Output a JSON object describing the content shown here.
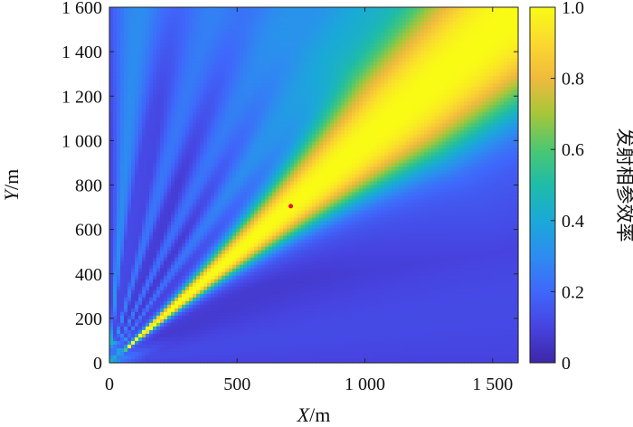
{
  "chart_data": {
    "type": "heatmap",
    "title": "",
    "xlabel": {
      "var": "X",
      "unit": "/m"
    },
    "ylabel": {
      "var": "Y",
      "unit": "/m"
    },
    "xlim": [
      0,
      1600
    ],
    "ylim": [
      0,
      1600
    ],
    "x_ticks": [
      {
        "value": 0,
        "label": "0"
      },
      {
        "value": 500,
        "label": "500"
      },
      {
        "value": 1000,
        "label": "1 000"
      },
      {
        "value": 1500,
        "label": "1 500"
      }
    ],
    "y_ticks": [
      {
        "value": 0,
        "label": "0"
      },
      {
        "value": 200,
        "label": "200"
      },
      {
        "value": 400,
        "label": "400"
      },
      {
        "value": 600,
        "label": "600"
      },
      {
        "value": 800,
        "label": "800"
      },
      {
        "value": 1000,
        "label": "1 000"
      },
      {
        "value": 1200,
        "label": "1 200"
      },
      {
        "value": 1400,
        "label": "1 400"
      },
      {
        "value": 1600,
        "label": "1 600"
      }
    ],
    "colorbar": {
      "label": "发射相参效率",
      "range": [
        0,
        1
      ],
      "ticks": [
        {
          "value": 0,
          "label": "0"
        },
        {
          "value": 0.2,
          "label": "0.2"
        },
        {
          "value": 0.4,
          "label": "0.4"
        },
        {
          "value": 0.6,
          "label": "0.6"
        },
        {
          "value": 0.8,
          "label": "0.8"
        },
        {
          "value": 1.0,
          "label": "1.0"
        }
      ],
      "colormap": [
        "#3e26a8",
        "#4743e0",
        "#3f67fb",
        "#2d8cf0",
        "#1aa9d8",
        "#1ebca8",
        "#4cc771",
        "#a6c63a",
        "#f0ba3d",
        "#fad92f",
        "#f9fb15"
      ]
    },
    "field_model": {
      "description_values": "main lobe along the direction toward the focus point; efficiency ~1 inside lobe, low elsewhere",
      "focus_point": {
        "x": 710,
        "y": 705
      },
      "background_level": 0.12,
      "grating_lobes": [
        {
          "angle_deg": 59,
          "level": 0.2
        },
        {
          "angle_deg": 67,
          "level": 0.22
        },
        {
          "angle_deg": 76,
          "level": 0.24
        },
        {
          "angle_deg": 86,
          "level": 0.3
        }
      ]
    },
    "marker": {
      "x": 710,
      "y": 705,
      "color": "#e8102a"
    }
  }
}
